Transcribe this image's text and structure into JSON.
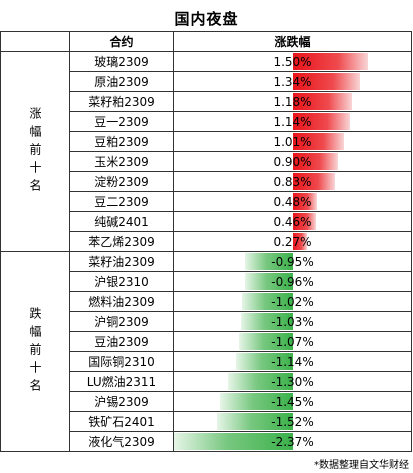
{
  "title": "国内夜盘",
  "header": {
    "col_name": "合约",
    "col_change": "涨跌幅"
  },
  "groups": [
    {
      "label": "涨幅前十名"
    },
    {
      "label": "跌幅前十名"
    }
  ],
  "colors": {
    "up": "#e8141a",
    "down": "#3cb14a"
  },
  "chart_data": {
    "type": "bar",
    "unit": "%",
    "categories": [
      "玻璃2309",
      "原油2309",
      "菜籽粕2309",
      "豆一2309",
      "豆粕2309",
      "玉米2309",
      "淀粉2309",
      "豆二2309",
      "纯碱2401",
      "苯乙烯2309",
      "菜籽油2309",
      "沪银2310",
      "燃料油2309",
      "沪铜2309",
      "豆油2309",
      "国际铜2310",
      "LU燃油2311",
      "沪锡2309",
      "铁矿石2401",
      "液化气2309"
    ],
    "values": [
      1.5,
      1.34,
      1.18,
      1.14,
      1.01,
      0.9,
      0.83,
      0.48,
      0.46,
      0.27,
      -0.95,
      -0.96,
      -1.02,
      -1.03,
      -1.07,
      -1.14,
      -1.3,
      -1.45,
      -1.52,
      -2.37
    ],
    "labels": [
      "1.50%",
      "1.34%",
      "1.18%",
      "1.14%",
      "1.01%",
      "0.90%",
      "0.83%",
      "0.48%",
      "0.46%",
      "0.27%",
      "-0.95%",
      "-0.96%",
      "-1.02%",
      "-1.03%",
      "-1.07%",
      "-1.14%",
      "-1.30%",
      "-1.45%",
      "-1.52%",
      "-2.37%"
    ]
  },
  "footnote": "*数据整理自文华财经"
}
